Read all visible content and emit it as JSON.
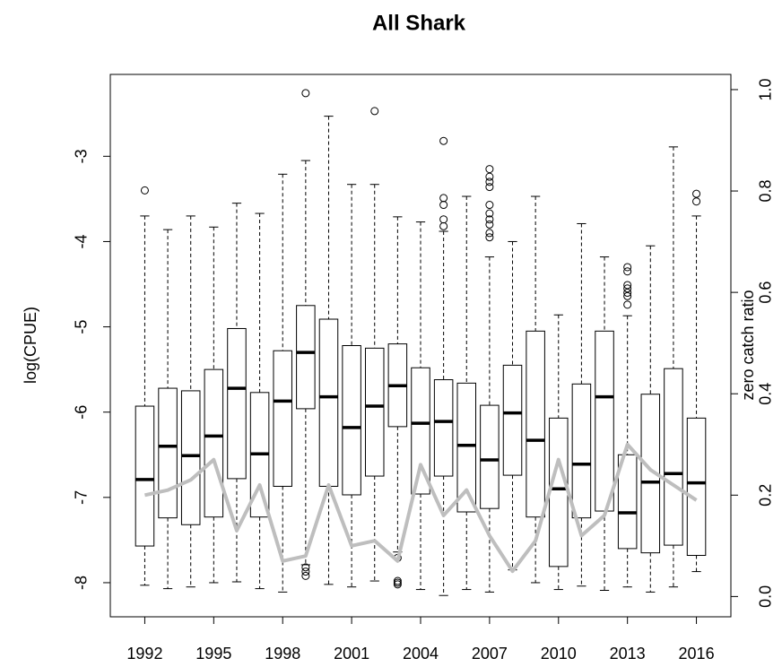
{
  "chart_data": {
    "type": "box",
    "title": "All Shark",
    "ylabel": "log(CPUE)",
    "y2label": "zero catch ratio",
    "categories": [
      "1992",
      null,
      null,
      "1995",
      null,
      null,
      "1998",
      null,
      null,
      "2001",
      null,
      null,
      "2004",
      null,
      null,
      "2007",
      null,
      null,
      "2010",
      null,
      null,
      "2013",
      null,
      null,
      "2016"
    ],
    "boxes": [
      {
        "whislo": -8.03,
        "q1": -7.57,
        "med": -6.79,
        "q3": -5.93,
        "whishi": -3.7,
        "fliers": [
          -3.4
        ]
      },
      {
        "whislo": -8.07,
        "q1": -7.24,
        "med": -6.4,
        "q3": -5.72,
        "whishi": -3.86,
        "fliers": []
      },
      {
        "whislo": -8.05,
        "q1": -7.32,
        "med": -6.51,
        "q3": -5.75,
        "whishi": -3.7,
        "fliers": []
      },
      {
        "whislo": -8.0,
        "q1": -7.23,
        "med": -6.28,
        "q3": -5.5,
        "whishi": -3.83,
        "fliers": []
      },
      {
        "whislo": -7.99,
        "q1": -6.78,
        "med": -5.72,
        "q3": -5.02,
        "whishi": -3.55,
        "fliers": []
      },
      {
        "whislo": -8.07,
        "q1": -7.23,
        "med": -6.49,
        "q3": -5.77,
        "whishi": -3.67,
        "fliers": []
      },
      {
        "whislo": -8.11,
        "q1": -6.87,
        "med": -5.87,
        "q3": -5.28,
        "whishi": -3.21,
        "fliers": []
      },
      {
        "whislo": -7.79,
        "q1": -5.96,
        "med": -5.3,
        "q3": -4.75,
        "whishi": -3.05,
        "fliers": [
          -2.26,
          -7.82,
          -7.87,
          -7.92
        ]
      },
      {
        "whislo": -8.02,
        "q1": -6.87,
        "med": -5.82,
        "q3": -4.91,
        "whishi": -2.53,
        "fliers": []
      },
      {
        "whislo": -8.05,
        "q1": -6.97,
        "med": -6.18,
        "q3": -5.22,
        "whishi": -3.33,
        "fliers": []
      },
      {
        "whislo": -7.98,
        "q1": -6.75,
        "med": -5.93,
        "q3": -5.25,
        "whishi": -3.33,
        "fliers": [
          -2.47
        ]
      },
      {
        "whislo": -7.64,
        "q1": -6.17,
        "med": -5.69,
        "q3": -5.2,
        "whishi": -3.71,
        "fliers": [
          -7.71,
          -7.98,
          -8.0,
          -8.02
        ]
      },
      {
        "whislo": -8.08,
        "q1": -6.96,
        "med": -6.13,
        "q3": -5.48,
        "whishi": -3.77,
        "fliers": []
      },
      {
        "whislo": -8.15,
        "q1": -6.75,
        "med": -6.11,
        "q3": -5.62,
        "whishi": -3.88,
        "fliers": [
          -2.82,
          -3.49,
          -3.57,
          -3.74,
          -3.82
        ]
      },
      {
        "whislo": -8.08,
        "q1": -7.17,
        "med": -6.39,
        "q3": -5.66,
        "whishi": -3.47,
        "fliers": []
      },
      {
        "whislo": -8.11,
        "q1": -7.13,
        "med": -6.56,
        "q3": -5.92,
        "whishi": -4.18,
        "fliers": [
          -3.15,
          -3.24,
          -3.3,
          -3.36,
          -3.57,
          -3.67,
          -3.74,
          -3.8,
          -3.9,
          -3.95
        ]
      },
      {
        "whislo": -7.85,
        "q1": -6.74,
        "med": -6.01,
        "q3": -5.45,
        "whishi": -4.0,
        "fliers": []
      },
      {
        "whislo": -8.0,
        "q1": -7.23,
        "med": -6.33,
        "q3": -5.05,
        "whishi": -3.47,
        "fliers": []
      },
      {
        "whislo": -8.08,
        "q1": -7.81,
        "med": -6.9,
        "q3": -6.07,
        "whishi": -4.86,
        "fliers": []
      },
      {
        "whislo": -8.04,
        "q1": -7.24,
        "med": -6.61,
        "q3": -5.67,
        "whishi": -3.79,
        "fliers": []
      },
      {
        "whislo": -8.09,
        "q1": -7.16,
        "med": -5.82,
        "q3": -5.05,
        "whishi": -4.18,
        "fliers": []
      },
      {
        "whislo": -8.05,
        "q1": -7.6,
        "med": -7.18,
        "q3": -6.5,
        "whishi": -4.87,
        "fliers": [
          -4.3,
          -4.35,
          -4.51,
          -4.55,
          -4.6,
          -4.64,
          -4.74
        ]
      },
      {
        "whislo": -8.11,
        "q1": -7.65,
        "med": -6.82,
        "q3": -5.79,
        "whishi": -4.05,
        "fliers": []
      },
      {
        "whislo": -8.05,
        "q1": -7.56,
        "med": -6.72,
        "q3": -5.49,
        "whishi": -2.89,
        "fliers": []
      },
      {
        "whislo": -7.87,
        "q1": -7.68,
        "med": -6.83,
        "q3": -6.07,
        "whishi": -3.7,
        "fliers": [
          -3.44,
          -3.53
        ]
      }
    ],
    "ratio": {
      "axis": "y2",
      "color": "#bebebe",
      "values": [
        0.2,
        0.21,
        0.23,
        0.27,
        0.13,
        0.22,
        0.07,
        0.08,
        0.22,
        0.1,
        0.11,
        0.07,
        0.26,
        0.16,
        0.21,
        0.12,
        0.05,
        0.11,
        0.27,
        0.12,
        0.16,
        0.3,
        0.25,
        0.22,
        0.19
      ]
    },
    "ylim": [
      -8.4,
      -2.04
    ],
    "yticks": [
      -8,
      -7,
      -6,
      -5,
      -4,
      -3
    ],
    "y2lim": [
      -0.04,
      1.03
    ],
    "y2ticks": [
      {
        "value": 0,
        "label": "0.0"
      },
      0.2,
      0.4,
      0.6,
      0.8,
      {
        "value": 1,
        "label": "1.0"
      }
    ]
  }
}
